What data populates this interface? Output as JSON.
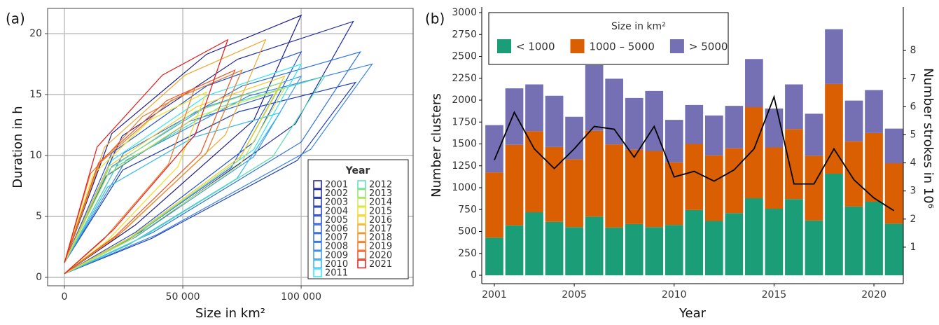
{
  "chart_data": [
    {
      "type": "line",
      "panel_label": "(a)",
      "xlabel": "Size in km²",
      "ylabel": "Duration in h",
      "xlim": [
        -7100,
        147300
      ],
      "ylim": [
        -0.69,
        22.07
      ],
      "xticks": [
        0,
        {
          "value": 50000,
          "label": "50 000"
        },
        {
          "value": 100000,
          "label": "100 000"
        }
      ],
      "yticks": [
        0,
        5,
        10,
        15,
        20
      ],
      "grid": true,
      "legend_title": "Year",
      "legend_position": "bottom-right",
      "series": [
        {
          "name": "2001",
          "color": "#1a1a8c",
          "x": [
            0,
            30000,
            80000,
            100000,
            60000,
            20000,
            0
          ],
          "y": [
            0.3,
            4.3,
            12.9,
            21.5,
            18.3,
            11.8,
            1.2
          ]
        },
        {
          "name": "2002",
          "color": "#1c2aa0",
          "x": [
            0,
            36600,
            97600,
            122000,
            73200,
            24400,
            0
          ],
          "y": [
            0.3,
            4.2,
            12.6,
            21,
            17.9,
            11.6,
            1.2
          ]
        },
        {
          "name": "2003",
          "color": "#1f3cb4",
          "x": [
            0,
            36900,
            98400,
            123000,
            73800,
            24600,
            0
          ],
          "y": [
            0.3,
            3.2,
            9.6,
            16,
            13.6,
            8.8,
            1.2
          ]
        },
        {
          "name": "2004",
          "color": "#2040c8",
          "x": [
            0,
            22500,
            60000,
            75000,
            45000,
            15000,
            0
          ],
          "y": [
            0.3,
            3.4,
            10.2,
            17,
            14.5,
            9.4,
            1.2
          ]
        },
        {
          "name": "2005",
          "color": "#2350d0",
          "x": [
            0,
            30000,
            80000,
            100000,
            60000,
            20000,
            0
          ],
          "y": [
            0.3,
            3.7,
            11.1,
            18.5,
            15.7,
            10.2,
            1.2
          ]
        },
        {
          "name": "2006",
          "color": "#2a60d8",
          "x": [
            0,
            26400,
            70400,
            88000,
            52800,
            17600,
            0
          ],
          "y": [
            0.3,
            3,
            9,
            15,
            12.8,
            8.3,
            1.2
          ]
        },
        {
          "name": "2007",
          "color": "#3070e0",
          "x": [
            0,
            37500,
            100000,
            125000,
            75000,
            25000,
            0
          ],
          "y": [
            0.3,
            3.7,
            11.1,
            18.5,
            15.7,
            10.2,
            1.2
          ]
        },
        {
          "name": "2008",
          "color": "#3a84e6",
          "x": [
            0,
            39000,
            104000,
            130000,
            78000,
            26000,
            0
          ],
          "y": [
            0.3,
            3.5,
            10.5,
            17.5,
            14.9,
            9.6,
            1.2
          ]
        },
        {
          "name": "2009",
          "color": "#4098ea",
          "x": [
            0,
            30000,
            80000,
            100000,
            60000,
            20000,
            0
          ],
          "y": [
            0.3,
            3.3,
            9.9,
            16.5,
            14,
            9.1,
            1.2
          ]
        },
        {
          "name": "2010",
          "color": "#30b8f0",
          "x": [
            0,
            27300,
            72800,
            91000,
            54600,
            18200,
            0
          ],
          "y": [
            0.3,
            2.7,
            8.1,
            13.5,
            11.5,
            7.4,
            1.2
          ]
        },
        {
          "name": "2011",
          "color": "#2ee6f5",
          "x": [
            0,
            30000,
            80000,
            100000,
            60000,
            20000,
            0
          ],
          "y": [
            0.3,
            3.5,
            10.5,
            17.5,
            14.9,
            9.6,
            1.2
          ]
        },
        {
          "name": "2012",
          "color": "#50e0b0",
          "x": [
            0,
            33000,
            88000,
            110000,
            66000,
            22000,
            0
          ],
          "y": [
            0.3,
            3.3,
            9.9,
            16.5,
            14,
            9.1,
            1.2
          ]
        },
        {
          "name": "2013",
          "color": "#90e070",
          "x": [
            0,
            27600,
            73600,
            92000,
            55200,
            18400,
            0
          ],
          "y": [
            0.3,
            3.2,
            9.6,
            16,
            13.6,
            8.8,
            1.2
          ]
        },
        {
          "name": "2014",
          "color": "#c8e850",
          "x": [
            0,
            27900,
            74400,
            93000,
            55800,
            18600,
            0
          ],
          "y": [
            0.3,
            3.1,
            9.3,
            15.5,
            13.2,
            8.5,
            1.2
          ]
        },
        {
          "name": "2015",
          "color": "#f0e020",
          "x": [
            0,
            18000,
            48000,
            60000,
            36000,
            12000,
            0
          ],
          "y": [
            0.3,
            3,
            9.1,
            15.2,
            12.9,
            8.4,
            1.2
          ]
        },
        {
          "name": "2016",
          "color": "#f5c828",
          "x": [
            0,
            27900,
            74400,
            93000,
            55800,
            18600,
            0
          ],
          "y": [
            0.3,
            3.3,
            9.9,
            16.5,
            14,
            9.1,
            1.2
          ]
        },
        {
          "name": "2017",
          "color": "#f0a830",
          "x": [
            0,
            25500,
            68000,
            85000,
            51000,
            17000,
            0
          ],
          "y": [
            0.3,
            3.9,
            11.7,
            19.5,
            16.6,
            10.7,
            1.2
          ]
        },
        {
          "name": "2018",
          "color": "#f09030",
          "x": [
            0,
            22500,
            60000,
            75000,
            45000,
            15000,
            0
          ],
          "y": [
            0.3,
            3.4,
            10.2,
            17,
            14.5,
            9.4,
            1.2
          ]
        },
        {
          "name": "2019",
          "color": "#f07828",
          "x": [
            0,
            16500,
            44000,
            55000,
            33000,
            11000,
            0
          ],
          "y": [
            0.3,
            3.1,
            9.3,
            15.5,
            13.2,
            8.5,
            1.2
          ]
        },
        {
          "name": "2020",
          "color": "#f05020",
          "x": [
            0,
            21600,
            57600,
            72000,
            43200,
            14400,
            0
          ],
          "y": [
            0.3,
            3.4,
            10.2,
            17,
            14.5,
            9.4,
            1.2
          ]
        },
        {
          "name": "2021",
          "color": "#e81818",
          "x": [
            0,
            20700,
            55200,
            69000,
            41400,
            13800,
            0
          ],
          "y": [
            0.3,
            3.9,
            11.7,
            19.5,
            16.6,
            10.7,
            1.2
          ]
        }
      ]
    },
    {
      "type": "bar",
      "stacked": true,
      "panel_label": "(b)",
      "xlabel": "Year",
      "ylabel": "Number clusters",
      "y2label": "Number strokes in 10⁶",
      "legend_title": "Size in km²",
      "legend_position": "top-left",
      "x": [
        2001,
        2002,
        2003,
        2004,
        2005,
        2006,
        2007,
        2008,
        2009,
        2010,
        2011,
        2012,
        2013,
        2014,
        2015,
        2016,
        2017,
        2018,
        2019,
        2020,
        2021
      ],
      "xlim": [
        2000.37,
        2021.47
      ],
      "xticks": [
        2001,
        2005,
        2010,
        2015,
        2020
      ],
      "ylim": [
        -96,
        3064
      ],
      "yticks": [
        0,
        250,
        500,
        750,
        1000,
        1250,
        1500,
        1750,
        2000,
        2250,
        2500,
        2750,
        3000
      ],
      "y2lim": [
        -0.3,
        9.55
      ],
      "y2ticks": [
        1,
        2,
        3,
        4,
        5,
        6,
        7,
        8
      ],
      "series": [
        {
          "name": "< 1000",
          "color": "#1b9e77",
          "values": [
            430,
            570,
            720,
            610,
            550,
            670,
            545,
            585,
            550,
            575,
            745,
            620,
            710,
            880,
            760,
            870,
            625,
            1160,
            785,
            840,
            590
          ]
        },
        {
          "name": "1000 – 5000",
          "color": "#d95f02",
          "values": [
            745,
            920,
            925,
            855,
            775,
            980,
            950,
            850,
            870,
            715,
            755,
            750,
            740,
            1040,
            700,
            800,
            740,
            1025,
            745,
            785,
            690
          ]
        },
        {
          "name": "> 5000",
          "color": "#7570b3",
          "values": [
            540,
            645,
            535,
            585,
            485,
            750,
            750,
            590,
            685,
            485,
            445,
            455,
            485,
            550,
            445,
            510,
            480,
            625,
            465,
            490,
            395
          ]
        },
        {
          "color": "#000000",
          "axis": "y2",
          "values": [
            4.1,
            5.8,
            4.5,
            3.8,
            4.5,
            5.3,
            5.2,
            4.2,
            5.3,
            3.5,
            3.7,
            3.35,
            3.75,
            4.5,
            6.35,
            3.25,
            3.25,
            4.5,
            3.4,
            2.75,
            2.3
          ]
        }
      ]
    }
  ]
}
